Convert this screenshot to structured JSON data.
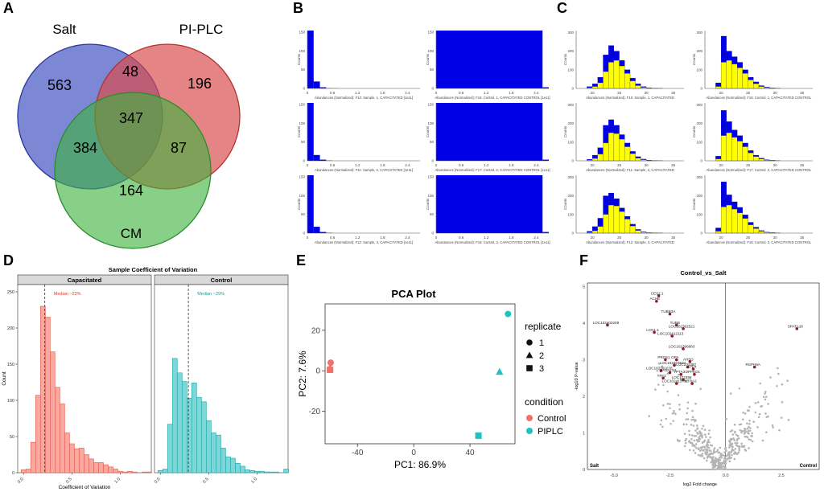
{
  "panel_letters": [
    "A",
    "B",
    "C",
    "D",
    "E",
    "F"
  ],
  "venn": {
    "sets": [
      "Salt",
      "PI-PLC",
      "CM"
    ],
    "colors": [
      "#3f4fbf",
      "#d94a4a",
      "#3fb23f"
    ],
    "regions": {
      "salt_only": "563",
      "plc_only": "196",
      "cm_only": "164",
      "salt_plc": "48",
      "salt_cm": "384",
      "plc_cm": "87",
      "all": "347"
    }
  },
  "chart_data": [
    {
      "type": "bar",
      "title": "Abundance histograms (panel B)",
      "ylabel": "Counts",
      "xticks": [
        "0",
        "0.6",
        "1.2",
        "1.8",
        "2.4"
      ],
      "xlim": [
        0,
        2.7
      ],
      "color": "#0000e6",
      "subplots": [
        {
          "xlabel": "Abundances (Normalized): F10: Sample, 1, CAPACITATED [1e11]",
          "yticks": [
            "0",
            "50",
            "100",
            "150"
          ],
          "bins": [
            0,
            0.15,
            0.3,
            0.45,
            0.6
          ],
          "values": [
            1.0,
            0.12,
            0.02,
            0.005,
            0.003
          ]
        },
        {
          "xlabel": "Abundances (Normalized): F16: Control, 1, CAPACITATED CONTROL [1e11]",
          "yticks": [
            "0",
            "50",
            "100",
            "150"
          ],
          "bins": [
            0,
            2.55
          ],
          "values": [
            1.0,
            0.02
          ]
        },
        {
          "xlabel": "Abundances (Normalized): F11: Sample, 2, CAPACITATED [1e11]",
          "yticks": [
            "0",
            "50",
            "100",
            "150"
          ],
          "bins": [
            0,
            0.15,
            0.3,
            0.45
          ],
          "values": [
            1.0,
            0.1,
            0.02,
            0.005
          ]
        },
        {
          "xlabel": "Abundances (Normalized): F17: Control, 2, CAPACITATED CONTROL [1e11]",
          "yticks": [
            "0",
            "50",
            "100",
            "150"
          ],
          "bins": [
            0,
            2.55
          ],
          "values": [
            1.0,
            0.02
          ]
        },
        {
          "xlabel": "Abundances (Normalized): F12: Sample, 3, CAPACITATED [1e11]",
          "yticks": [
            "0",
            "50",
            "100",
            "150"
          ],
          "bins": [
            0,
            0.15,
            0.3,
            0.45
          ],
          "values": [
            1.0,
            0.11,
            0.02,
            0.005
          ]
        },
        {
          "xlabel": "Abundances (Normalized): F18: Control, 3, CAPACITATED CONTROL [1e11]",
          "yticks": [
            "0",
            "50",
            "100",
            "150"
          ],
          "bins": [
            0,
            2.55
          ],
          "values": [
            1.0,
            0.02
          ]
        }
      ]
    },
    {
      "type": "bar",
      "title": "Log abundance histograms (panel C)",
      "ylabel": "Counts",
      "xticks": [
        "20",
        "25",
        "30",
        "35"
      ],
      "xlim": [
        17,
        37
      ],
      "series_colors": {
        "total": "#0000e6",
        "subset": "#ffff00"
      },
      "subplots": [
        {
          "xlabel": "Abundances (Normalized): F10: Sample, 1, CAPACITATED",
          "yticks": [
            "0",
            "100",
            "200",
            "300"
          ],
          "bins": [
            19,
            20,
            21,
            22,
            23,
            24,
            25,
            26,
            27,
            28,
            29,
            30,
            31,
            32
          ],
          "total": [
            10,
            25,
            60,
            180,
            230,
            200,
            150,
            100,
            55,
            25,
            10,
            4,
            2,
            1
          ],
          "subset": [
            3,
            10,
            30,
            90,
            140,
            150,
            120,
            80,
            40,
            15,
            5,
            2,
            1,
            0
          ]
        },
        {
          "xlabel": "Abundances (Normalized): F16: Control, 1, CAPACITATED CONTROL",
          "yticks": [
            "0",
            "100",
            "200",
            "300"
          ],
          "bins": [
            19,
            20,
            21,
            22,
            23,
            24,
            25,
            26,
            27,
            28,
            29,
            30,
            31,
            32
          ],
          "total": [
            30,
            280,
            200,
            170,
            140,
            100,
            60,
            35,
            15,
            7,
            3,
            1,
            0,
            0
          ],
          "subset": [
            10,
            140,
            150,
            130,
            110,
            80,
            45,
            25,
            10,
            4,
            1,
            0,
            0,
            0
          ]
        },
        {
          "xlabel": "Abundances (Normalized): F11: Sample, 2, CAPACITATED",
          "yticks": [
            "0",
            "100",
            "200",
            "300"
          ],
          "bins": [
            19,
            20,
            21,
            22,
            23,
            24,
            25,
            26,
            27,
            28,
            29,
            30,
            31,
            32
          ],
          "total": [
            8,
            30,
            70,
            190,
            220,
            190,
            140,
            95,
            50,
            22,
            9,
            4,
            2,
            1
          ],
          "subset": [
            3,
            12,
            35,
            95,
            150,
            145,
            115,
            75,
            38,
            14,
            5,
            2,
            1,
            0
          ]
        },
        {
          "xlabel": "Abundances (Normalized): F17: Control, 2, CAPACITATED CONTROL",
          "yticks": [
            "0",
            "100",
            "200",
            "300"
          ],
          "bins": [
            19,
            20,
            21,
            22,
            23,
            24,
            25,
            26,
            27,
            28,
            29,
            30,
            31,
            32
          ],
          "total": [
            25,
            270,
            210,
            165,
            135,
            95,
            55,
            30,
            14,
            6,
            3,
            1,
            0,
            0
          ],
          "subset": [
            9,
            135,
            150,
            125,
            105,
            75,
            42,
            22,
            9,
            3,
            1,
            0,
            0,
            0
          ]
        },
        {
          "xlabel": "Abundances (Normalized): F12: Sample, 3, CAPACITATED",
          "yticks": [
            "0",
            "100",
            "200",
            "300"
          ],
          "bins": [
            19,
            20,
            21,
            22,
            23,
            24,
            25,
            26,
            27,
            28,
            29,
            30,
            31,
            32
          ],
          "total": [
            10,
            35,
            80,
            200,
            215,
            185,
            135,
            90,
            48,
            20,
            8,
            3,
            2,
            1
          ],
          "subset": [
            3,
            12,
            35,
            100,
            150,
            145,
            115,
            75,
            38,
            14,
            5,
            2,
            1,
            0
          ]
        },
        {
          "xlabel": "Abundances (Normalized): F18: Control, 3, CAPACITATED CONTROL",
          "yticks": [
            "0",
            "100",
            "200",
            "300"
          ],
          "bins": [
            19,
            20,
            21,
            22,
            23,
            24,
            25,
            26,
            27,
            28,
            29,
            30,
            31,
            32
          ],
          "total": [
            28,
            275,
            205,
            168,
            138,
            98,
            58,
            32,
            14,
            6,
            3,
            1,
            0,
            0
          ],
          "subset": [
            10,
            140,
            150,
            128,
            108,
            78,
            44,
            24,
            10,
            4,
            1,
            0,
            0,
            0
          ]
        }
      ]
    },
    {
      "type": "bar",
      "title": "Sample Coefficient of Variation",
      "xlabel": "Coefficient of Variation",
      "ylabel": "Count",
      "ylim": [
        0,
        260
      ],
      "yticks": [
        0,
        50,
        100,
        150,
        200,
        250
      ],
      "facets": [
        {
          "name": "Capacitated",
          "median_label": "Median ~22%",
          "median": 0.22,
          "fill": "#f8a8a0",
          "stroke": "#e05a4a",
          "label_color": "#d43a2a",
          "bins": [
            -0.025,
            0.025,
            0.075,
            0.125,
            0.175,
            0.225,
            0.275,
            0.325,
            0.375,
            0.425,
            0.475,
            0.525,
            0.575,
            0.625,
            0.675,
            0.725,
            0.775,
            0.825,
            0.875,
            0.925,
            0.975,
            1.025,
            1.075,
            1.125,
            1.175,
            1.225,
            1.275
          ],
          "values": [
            4,
            5,
            42,
            107,
            230,
            215,
            167,
            118,
            95,
            55,
            40,
            33,
            34,
            25,
            19,
            14,
            14,
            11,
            8,
            5,
            2,
            1,
            2,
            1,
            0,
            1,
            1
          ]
        },
        {
          "name": "Control",
          "median_label": "Median ~29%",
          "median": 0.29,
          "fill": "#7fd6d6",
          "stroke": "#1aa6a6",
          "label_color": "#1a9a9a",
          "bins": [
            -0.025,
            0.025,
            0.075,
            0.125,
            0.175,
            0.225,
            0.275,
            0.325,
            0.375,
            0.425,
            0.475,
            0.525,
            0.575,
            0.625,
            0.675,
            0.725,
            0.775,
            0.825,
            0.875,
            0.925,
            0.975,
            1.025,
            1.075,
            1.125,
            1.175,
            1.225,
            1.275
          ],
          "values": [
            3,
            5,
            67,
            158,
            138,
            126,
            103,
            124,
            104,
            98,
            72,
            55,
            52,
            34,
            22,
            20,
            13,
            9,
            4,
            3,
            2,
            2,
            1,
            1,
            1,
            0,
            5
          ]
        }
      ],
      "xticks": [
        "0.0",
        "0.5",
        "1.0"
      ]
    },
    {
      "type": "scatter",
      "title": "PCA Plot",
      "xlabel": "PC1: 86.9%",
      "ylabel": "PC2: 7.6%",
      "xlim": [
        -63,
        72
      ],
      "ylim": [
        -36,
        33
      ],
      "xticks": [
        -40,
        0,
        40
      ],
      "yticks": [
        -20,
        0,
        20
      ],
      "legend": {
        "replicate_title": "replicate",
        "replicates": [
          "1",
          "2",
          "3"
        ],
        "condition_title": "condition",
        "conditions": [
          "Control",
          "PIPLC"
        ]
      },
      "colors": {
        "Control": "#f0716a",
        "PIPLC": "#1ec2c2"
      },
      "points": [
        {
          "x": -59,
          "y": 4,
          "condition": "Control",
          "replicate": "1"
        },
        {
          "x": -59.5,
          "y": 1.5,
          "condition": "Control",
          "replicate": "2"
        },
        {
          "x": -59.5,
          "y": 0.5,
          "condition": "Control",
          "replicate": "3"
        },
        {
          "x": 67,
          "y": 28,
          "condition": "PIPLC",
          "replicate": "1"
        },
        {
          "x": 61,
          "y": -0.5,
          "condition": "PIPLC",
          "replicate": "2"
        },
        {
          "x": 46,
          "y": -32,
          "condition": "PIPLC",
          "replicate": "3"
        }
      ]
    },
    {
      "type": "scatter",
      "title": "Control_vs_Salt",
      "xlabel": "log2 Fold change",
      "ylabel": "-log10 P-value",
      "xlim": [
        -6.2,
        4.2
      ],
      "ylim": [
        0,
        5.1
      ],
      "xticks": [
        "-5.0",
        "-2.5",
        "0.0",
        "2.5"
      ],
      "yticks": [
        "0",
        "1",
        "2",
        "3",
        "4",
        "5"
      ],
      "left_corner_label": "Salt",
      "right_corner_label": "Control",
      "labeled_points": [
        {
          "label": "CES2.1",
          "x": -3.0,
          "y": 4.75
        },
        {
          "label": "ACHE",
          "x": -3.1,
          "y": 4.6
        },
        {
          "label": "TUBB3A",
          "x": -2.5,
          "y": 4.25
        },
        {
          "label": "LOC102403209",
          "x": -5.3,
          "y": 3.95
        },
        {
          "label": "TUBB",
          "x": -2.2,
          "y": 3.95
        },
        {
          "label": "LOC102392521",
          "x": -1.9,
          "y": 3.85
        },
        {
          "label": "LCN1.1",
          "x": -3.2,
          "y": 3.75
        },
        {
          "label": "LOC102412113",
          "x": -2.4,
          "y": 3.65
        },
        {
          "label": "SPATA18",
          "x": 3.2,
          "y": 3.85
        },
        {
          "label": "LOC102396683",
          "x": -1.9,
          "y": 3.3
        },
        {
          "label": "PRSS1",
          "x": -2.7,
          "y": 3.0
        },
        {
          "label": "GPA",
          "x": -2.2,
          "y": 3.0
        },
        {
          "label": "AHSG",
          "x": -1.6,
          "y": 2.95
        },
        {
          "label": "LOC102407534",
          "x": -2.3,
          "y": 2.85
        },
        {
          "label": "LOC102397",
          "x": -1.7,
          "y": 2.8
        },
        {
          "label": "APP4",
          "x": -1.45,
          "y": 2.75
        },
        {
          "label": "LOC102391078",
          "x": -2.9,
          "y": 2.7
        },
        {
          "label": "BASALS1",
          "x": -2.5,
          "y": 2.65
        },
        {
          "label": "TPTA3",
          "x": -2.0,
          "y": 2.6
        },
        {
          "label": "DPPED1",
          "x": -1.4,
          "y": 2.6
        },
        {
          "label": "RSPH9A",
          "x": 1.3,
          "y": 2.8
        },
        {
          "label": "LOC102398",
          "x": -1.9,
          "y": 2.45
        },
        {
          "label": "TFF2",
          "x": -2.8,
          "y": 2.5
        },
        {
          "label": "LOC102413732",
          "x": -2.2,
          "y": 2.35
        },
        {
          "label": "HTRA2",
          "x": -1.5,
          "y": 2.35
        }
      ]
    }
  ]
}
